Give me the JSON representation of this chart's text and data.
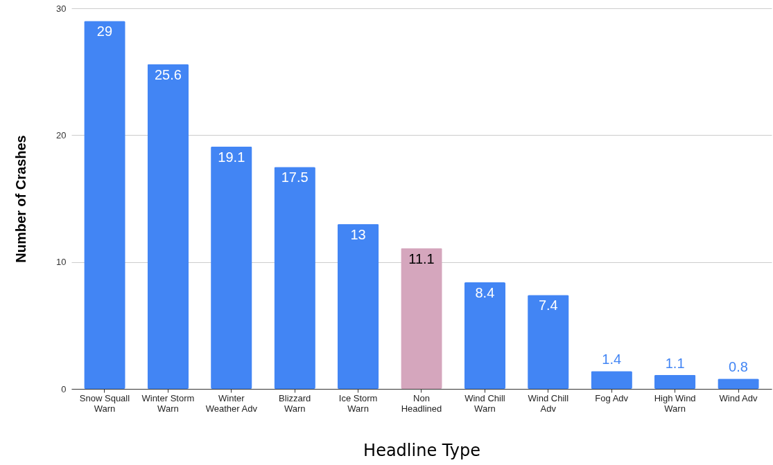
{
  "chart_data": {
    "type": "bar",
    "xlabel": "Headline Type",
    "ylabel": "Number of Crashes",
    "categories": [
      "Snow Squall Warn",
      "Winter Storm Warn",
      "Winter Weather Adv",
      "Blizzard Warn",
      "Ice Storm Warn",
      "Non Headlined",
      "Wind Chill Warn",
      "Wind Chill Adv",
      "Fog Adv",
      "High Wind Warn",
      "Wind Adv"
    ],
    "values": [
      29,
      25.6,
      19.1,
      17.5,
      13,
      11.1,
      8.4,
      7.4,
      1.4,
      1.1,
      0.8
    ],
    "colors": [
      "#4285f4",
      "#4285f4",
      "#4285f4",
      "#4285f4",
      "#4285f4",
      "#d5a6bd",
      "#4285f4",
      "#4285f4",
      "#4285f4",
      "#4285f4",
      "#4285f4"
    ],
    "ylim": [
      0,
      30
    ],
    "yticks": [
      0,
      10,
      20,
      30
    ],
    "grid": "y",
    "data_labels": true
  }
}
